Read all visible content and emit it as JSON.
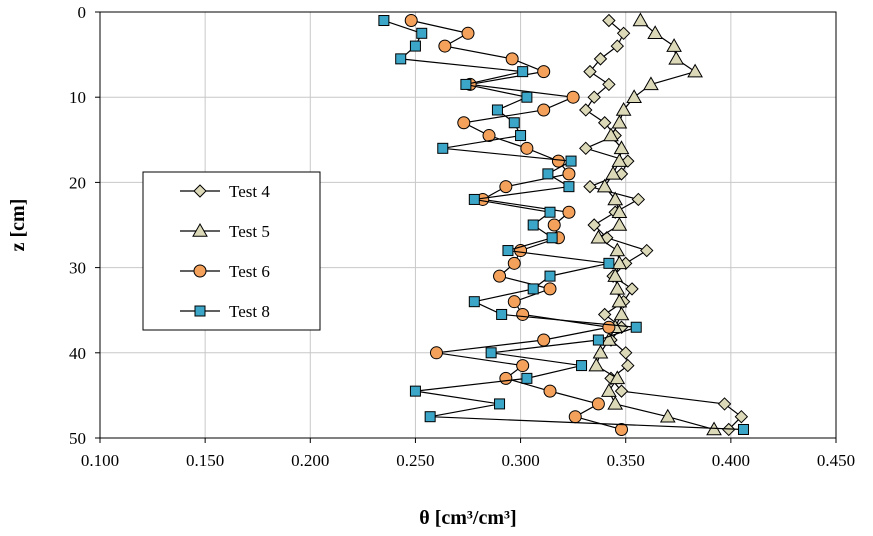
{
  "chart_data": {
    "type": "scatter",
    "xlabel": "θ [cm³/cm³]",
    "ylabel": "z [cm]",
    "xlim": [
      0.1,
      0.45
    ],
    "ylim": [
      0,
      50
    ],
    "y_inverted": true,
    "x_ticks": [
      "0.100",
      "0.150",
      "0.200",
      "0.250",
      "0.300",
      "0.350",
      "0.400",
      "0.450"
    ],
    "y_ticks": [
      "0",
      "10",
      "20",
      "30",
      "40",
      "50"
    ],
    "x_tick_values": [
      0.1,
      0.15,
      0.2,
      0.25,
      0.3,
      0.35,
      0.4,
      0.45
    ],
    "y_tick_values": [
      0,
      10,
      20,
      30,
      40,
      50
    ],
    "grid": true,
    "legend_position": "left-center",
    "series": [
      {
        "name": "Test 4",
        "marker": "diamond",
        "color": "#dcd9b8",
        "points": [
          [
            0.342,
            1
          ],
          [
            0.349,
            2.5
          ],
          [
            0.346,
            4
          ],
          [
            0.338,
            5.5
          ],
          [
            0.333,
            7
          ],
          [
            0.342,
            8.5
          ],
          [
            0.335,
            10
          ],
          [
            0.331,
            11.5
          ],
          [
            0.34,
            13
          ],
          [
            0.345,
            14.5
          ],
          [
            0.331,
            16
          ],
          [
            0.351,
            17.5
          ],
          [
            0.348,
            19
          ],
          [
            0.333,
            20.5
          ],
          [
            0.356,
            22
          ],
          [
            0.345,
            23.5
          ],
          [
            0.335,
            25
          ],
          [
            0.341,
            26.5
          ],
          [
            0.36,
            28
          ],
          [
            0.35,
            29.5
          ],
          [
            0.344,
            31
          ],
          [
            0.353,
            32.5
          ],
          [
            0.349,
            34
          ],
          [
            0.34,
            35.5
          ],
          [
            0.348,
            37
          ],
          [
            0.343,
            38.5
          ],
          [
            0.35,
            40
          ],
          [
            0.351,
            41.5
          ],
          [
            0.343,
            43
          ],
          [
            0.348,
            44.5
          ],
          [
            0.397,
            46
          ],
          [
            0.405,
            47.5
          ],
          [
            0.399,
            49
          ]
        ]
      },
      {
        "name": "Test 5",
        "marker": "triangle",
        "color": "#dcd9b8",
        "points": [
          [
            0.357,
            1
          ],
          [
            0.364,
            2.5
          ],
          [
            0.373,
            4
          ],
          [
            0.374,
            5.5
          ],
          [
            0.383,
            7
          ],
          [
            0.362,
            8.5
          ],
          [
            0.354,
            10
          ],
          [
            0.349,
            11.5
          ],
          [
            0.347,
            13
          ],
          [
            0.343,
            14.5
          ],
          [
            0.348,
            16
          ],
          [
            0.347,
            17.5
          ],
          [
            0.344,
            19
          ],
          [
            0.34,
            20.5
          ],
          [
            0.345,
            22
          ],
          [
            0.347,
            23.5
          ],
          [
            0.347,
            25
          ],
          [
            0.337,
            26.5
          ],
          [
            0.346,
            28
          ],
          [
            0.347,
            29.5
          ],
          [
            0.345,
            31
          ],
          [
            0.346,
            32.5
          ],
          [
            0.347,
            34
          ],
          [
            0.348,
            35.5
          ],
          [
            0.345,
            37
          ],
          [
            0.342,
            38.5
          ],
          [
            0.338,
            40
          ],
          [
            0.336,
            41.5
          ],
          [
            0.346,
            43
          ],
          [
            0.342,
            44.5
          ],
          [
            0.345,
            46
          ],
          [
            0.37,
            47.5
          ],
          [
            0.392,
            49
          ]
        ]
      },
      {
        "name": "Test 6",
        "marker": "circle",
        "color": "#f4a15c",
        "points": [
          [
            0.248,
            1
          ],
          [
            0.275,
            2.5
          ],
          [
            0.264,
            4
          ],
          [
            0.296,
            5.5
          ],
          [
            0.311,
            7
          ],
          [
            0.276,
            8.5
          ],
          [
            0.325,
            10
          ],
          [
            0.311,
            11.5
          ],
          [
            0.273,
            13
          ],
          [
            0.285,
            14.5
          ],
          [
            0.303,
            16
          ],
          [
            0.318,
            17.5
          ],
          [
            0.323,
            19
          ],
          [
            0.293,
            20.5
          ],
          [
            0.282,
            22
          ],
          [
            0.323,
            23.5
          ],
          [
            0.316,
            25
          ],
          [
            0.318,
            26.5
          ],
          [
            0.3,
            28
          ],
          [
            0.297,
            29.5
          ],
          [
            0.29,
            31
          ],
          [
            0.314,
            32.5
          ],
          [
            0.297,
            34
          ],
          [
            0.301,
            35.5
          ],
          [
            0.342,
            37
          ],
          [
            0.311,
            38.5
          ],
          [
            0.26,
            40
          ],
          [
            0.301,
            41.5
          ],
          [
            0.293,
            43
          ],
          [
            0.314,
            44.5
          ],
          [
            0.337,
            46
          ],
          [
            0.326,
            47.5
          ],
          [
            0.348,
            49
          ]
        ]
      },
      {
        "name": "Test 8",
        "marker": "square",
        "color": "#3ca6c8",
        "points": [
          [
            0.235,
            1
          ],
          [
            0.253,
            2.5
          ],
          [
            0.25,
            4
          ],
          [
            0.243,
            5.5
          ],
          [
            0.301,
            7
          ],
          [
            0.274,
            8.5
          ],
          [
            0.303,
            10
          ],
          [
            0.289,
            11.5
          ],
          [
            0.297,
            13
          ],
          [
            0.3,
            14.5
          ],
          [
            0.263,
            16
          ],
          [
            0.324,
            17.5
          ],
          [
            0.313,
            19
          ],
          [
            0.323,
            20.5
          ],
          [
            0.278,
            22
          ],
          [
            0.314,
            23.5
          ],
          [
            0.306,
            25
          ],
          [
            0.315,
            26.5
          ],
          [
            0.294,
            28
          ],
          [
            0.342,
            29.5
          ],
          [
            0.314,
            31
          ],
          [
            0.306,
            32.5
          ],
          [
            0.278,
            34
          ],
          [
            0.291,
            35.5
          ],
          [
            0.355,
            37
          ],
          [
            0.337,
            38.5
          ],
          [
            0.286,
            40
          ],
          [
            0.329,
            41.5
          ],
          [
            0.303,
            43
          ],
          [
            0.25,
            44.5
          ],
          [
            0.29,
            46
          ],
          [
            0.257,
            47.5
          ],
          [
            0.406,
            49
          ]
        ]
      }
    ]
  }
}
